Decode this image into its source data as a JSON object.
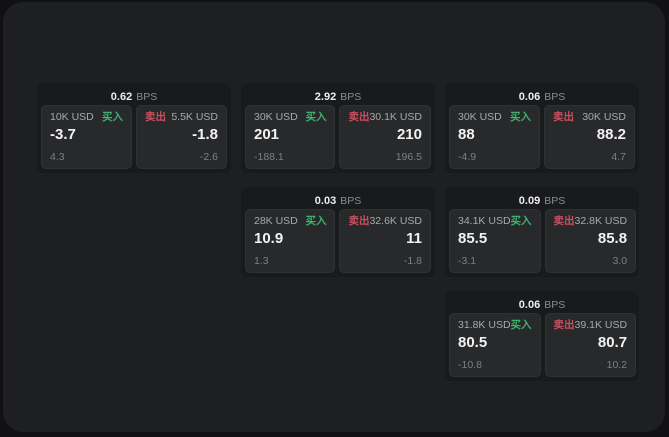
{
  "page": {
    "background": "#111113",
    "panel_background": "#1e1f21",
    "card_background": "#191a1c",
    "pane_background": "#28292b"
  },
  "labels": {
    "bps_unit": "BPS",
    "buy": "买入",
    "sell": "卖出"
  },
  "colors": {
    "buy_green": "#3fb06e",
    "sell_red": "#c94f60"
  },
  "cards": [
    {
      "bps": "0.62",
      "buy": {
        "amount": "10K USD",
        "price": "-3.7",
        "delta": "4.3"
      },
      "sell": {
        "amount": "5.5K USD",
        "price": "-1.8",
        "delta": "-2.6"
      }
    },
    {
      "bps": "2.92",
      "buy": {
        "amount": "30K USD",
        "price": "201",
        "delta": "-188.1"
      },
      "sell": {
        "amount": "30.1K USD",
        "price": "210",
        "delta": "196.5"
      }
    },
    {
      "bps": "0.06",
      "buy": {
        "amount": "30K USD",
        "price": "88",
        "delta": "-4.9"
      },
      "sell": {
        "amount": "30K USD",
        "price": "88.2",
        "delta": "4.7"
      }
    },
    {
      "bps": "0.03",
      "buy": {
        "amount": "28K USD",
        "price": "10.9",
        "delta": "1.3"
      },
      "sell": {
        "amount": "32.6K USD",
        "price": "11",
        "delta": "-1.8"
      }
    },
    {
      "bps": "0.09",
      "buy": {
        "amount": "34.1K USD",
        "price": "85.5",
        "delta": "-3.1"
      },
      "sell": {
        "amount": "32.8K USD",
        "price": "85.8",
        "delta": "3.0"
      }
    },
    {
      "bps": "0.06",
      "buy": {
        "amount": "31.8K USD",
        "price": "80.5",
        "delta": "-10.8"
      },
      "sell": {
        "amount": "39.1K USD",
        "price": "80.7",
        "delta": "10.2"
      }
    }
  ]
}
